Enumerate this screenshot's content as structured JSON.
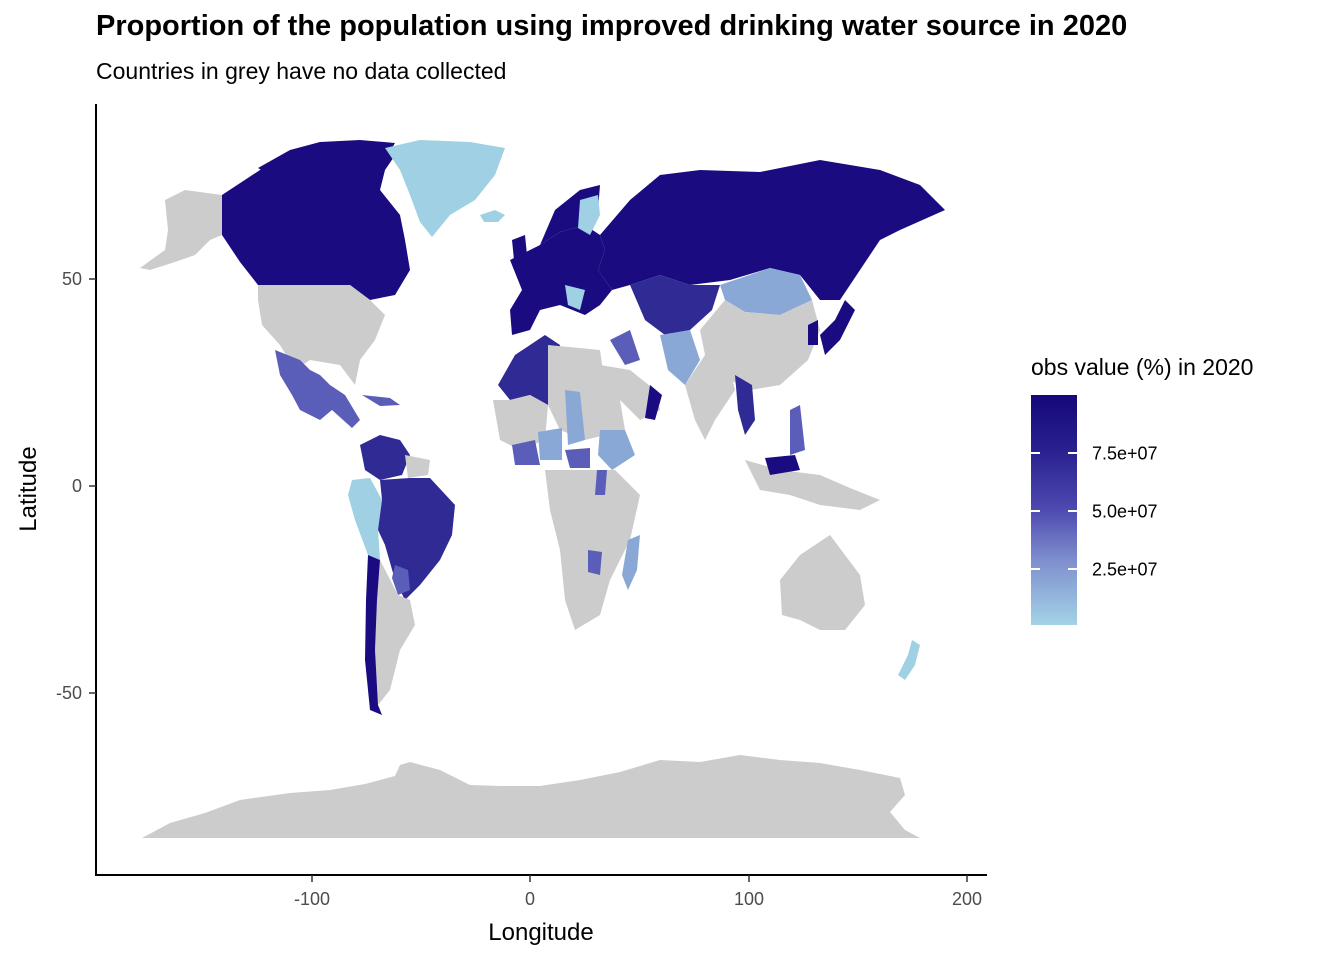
{
  "title": "Proportion of the population using improved drinking water source in 2020",
  "subtitle": "Countries in grey have no data collected",
  "axes": {
    "x": {
      "label": "Longitude",
      "ticks": [
        "-100",
        "0",
        "100",
        "200"
      ]
    },
    "y": {
      "label": "Latitude",
      "ticks": [
        "50",
        "0",
        "-50"
      ]
    }
  },
  "legend": {
    "title": "obs value (%) in 2020",
    "labels": [
      "7.5e+07",
      "5.0e+07",
      "2.5e+07"
    ],
    "colors": {
      "high": "#14087a",
      "low": "#a3d3e6"
    }
  },
  "colors": {
    "no_data": "#cccccc",
    "high": "#1a0c80",
    "mid_high": "#2f2a94",
    "mid": "#5b5eb8",
    "mid_low": "#8aa8d6",
    "low": "#9fd0e3"
  },
  "chart_data": {
    "type": "choropleth",
    "xlabel": "Longitude",
    "ylabel": "Latitude",
    "xlim": [
      -190,
      210
    ],
    "ylim": [
      -93,
      92
    ],
    "legend_title": "obs value (%) in 2020"
  }
}
